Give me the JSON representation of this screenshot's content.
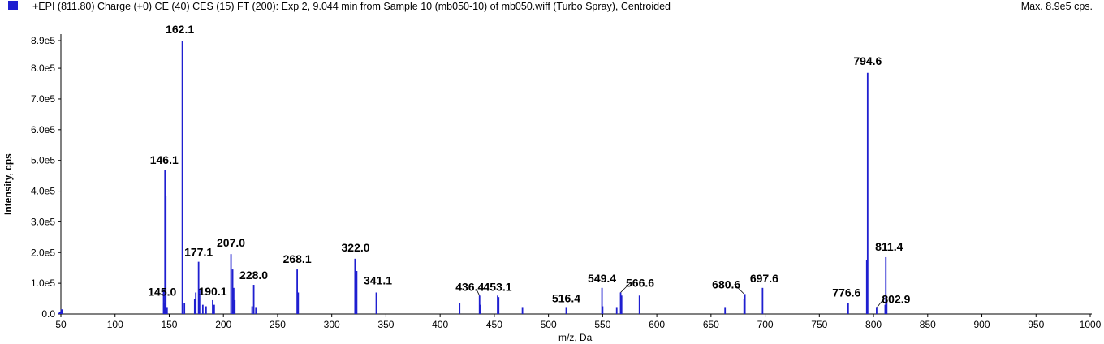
{
  "header": {
    "title": "+EPI (811.80) Charge (+0) CE (40) CES (15) FT (200): Exp 2, 9.044 min from Sample 10 (mb050-10) of mb050.wiff (Turbo Spray), Centroided",
    "max_label": "Max. 8.9e5 cps."
  },
  "colors": {
    "series": "#1f1fd0"
  },
  "chart_data": {
    "type": "bar",
    "xlabel": "m/z, Da",
    "ylabel": "Intensity, cps",
    "xlim": [
      50,
      1000
    ],
    "ylim": [
      0,
      890000
    ],
    "x_ticks": [
      50,
      100,
      150,
      200,
      250,
      300,
      350,
      400,
      450,
      500,
      550,
      600,
      650,
      700,
      750,
      800,
      850,
      900,
      950,
      1000
    ],
    "y_ticks": [
      {
        "value": 0,
        "label": "0.0"
      },
      {
        "value": 100000,
        "label": "1.0e5"
      },
      {
        "value": 200000,
        "label": "2.0e5"
      },
      {
        "value": 300000,
        "label": "3.0e5"
      },
      {
        "value": 400000,
        "label": "4.0e5"
      },
      {
        "value": 500000,
        "label": "5.0e5"
      },
      {
        "value": 600000,
        "label": "6.0e5"
      },
      {
        "value": 700000,
        "label": "7.0e5"
      },
      {
        "value": 800000,
        "label": "8.0e5"
      },
      {
        "value": 890000,
        "label": "8.9e5"
      }
    ],
    "peaks": [
      {
        "mz": 50.5,
        "intensity": 15000
      },
      {
        "mz": 144.8,
        "intensity": 80000
      },
      {
        "mz": 145.0,
        "intensity": 35000
      },
      {
        "mz": 146.1,
        "intensity": 470000
      },
      {
        "mz": 146.8,
        "intensity": 385000
      },
      {
        "mz": 148.0,
        "intensity": 20000
      },
      {
        "mz": 162.1,
        "intensity": 890000
      },
      {
        "mz": 164.0,
        "intensity": 35000
      },
      {
        "mz": 173.5,
        "intensity": 50000
      },
      {
        "mz": 174.5,
        "intensity": 70000
      },
      {
        "mz": 177.1,
        "intensity": 170000
      },
      {
        "mz": 178.0,
        "intensity": 80000
      },
      {
        "mz": 181.0,
        "intensity": 30000
      },
      {
        "mz": 184.0,
        "intensity": 25000
      },
      {
        "mz": 190.1,
        "intensity": 45000
      },
      {
        "mz": 191.5,
        "intensity": 30000
      },
      {
        "mz": 207.0,
        "intensity": 195000
      },
      {
        "mz": 208.5,
        "intensity": 145000
      },
      {
        "mz": 209.5,
        "intensity": 85000
      },
      {
        "mz": 210.5,
        "intensity": 45000
      },
      {
        "mz": 226.5,
        "intensity": 25000
      },
      {
        "mz": 228.0,
        "intensity": 95000
      },
      {
        "mz": 230.0,
        "intensity": 20000
      },
      {
        "mz": 268.1,
        "intensity": 145000
      },
      {
        "mz": 269.0,
        "intensity": 70000
      },
      {
        "mz": 321.5,
        "intensity": 180000
      },
      {
        "mz": 322.0,
        "intensity": 170000
      },
      {
        "mz": 323.0,
        "intensity": 140000
      },
      {
        "mz": 341.1,
        "intensity": 70000
      },
      {
        "mz": 418.0,
        "intensity": 35000
      },
      {
        "mz": 436.4,
        "intensity": 60000
      },
      {
        "mz": 437.0,
        "intensity": 30000
      },
      {
        "mz": 453.1,
        "intensity": 60000
      },
      {
        "mz": 454.0,
        "intensity": 55000
      },
      {
        "mz": 476.0,
        "intensity": 20000
      },
      {
        "mz": 516.4,
        "intensity": 20000
      },
      {
        "mz": 549.4,
        "intensity": 85000
      },
      {
        "mz": 550.0,
        "intensity": 25000
      },
      {
        "mz": 563.0,
        "intensity": 20000
      },
      {
        "mz": 566.6,
        "intensity": 70000
      },
      {
        "mz": 567.5,
        "intensity": 60000
      },
      {
        "mz": 584.0,
        "intensity": 60000
      },
      {
        "mz": 663.0,
        "intensity": 20000
      },
      {
        "mz": 680.6,
        "intensity": 50000
      },
      {
        "mz": 681.3,
        "intensity": 65000
      },
      {
        "mz": 697.6,
        "intensity": 85000
      },
      {
        "mz": 776.6,
        "intensity": 35000
      },
      {
        "mz": 793.8,
        "intensity": 175000
      },
      {
        "mz": 794.6,
        "intensity": 785000
      },
      {
        "mz": 802.9,
        "intensity": 20000
      },
      {
        "mz": 810.8,
        "intensity": 30000
      },
      {
        "mz": 811.4,
        "intensity": 185000
      },
      {
        "mz": 812.2,
        "intensity": 45000
      }
    ],
    "annotations": [
      {
        "text": "162.1",
        "mz": 162.1,
        "intensity": 890000
      },
      {
        "text": "146.1",
        "mz": 146.1,
        "intensity": 470000
      },
      {
        "text": "145.0",
        "mz": 145.0,
        "intensity": 35000
      },
      {
        "text": "177.1",
        "mz": 177.1,
        "intensity": 170000
      },
      {
        "text": "190.1",
        "mz": 190.1,
        "intensity": 45000
      },
      {
        "text": "207.0",
        "mz": 207.0,
        "intensity": 195000
      },
      {
        "text": "228.0",
        "mz": 228.0,
        "intensity": 95000
      },
      {
        "text": "268.1",
        "mz": 268.1,
        "intensity": 145000
      },
      {
        "text": "322.0",
        "mz": 322.0,
        "intensity": 180000
      },
      {
        "text": "341.1",
        "mz": 341.1,
        "intensity": 70000
      },
      {
        "text": "436.4",
        "mz": 436.4,
        "intensity": 60000
      },
      {
        "text": "453.1",
        "mz": 453.1,
        "intensity": 60000
      },
      {
        "text": "516.4",
        "mz": 516.4,
        "intensity": 20000
      },
      {
        "text": "549.4",
        "mz": 549.4,
        "intensity": 85000
      },
      {
        "text": "566.6",
        "mz": 566.6,
        "intensity": 70000
      },
      {
        "text": "680.6",
        "mz": 680.6,
        "intensity": 65000
      },
      {
        "text": "697.6",
        "mz": 697.6,
        "intensity": 85000
      },
      {
        "text": "776.6",
        "mz": 776.6,
        "intensity": 35000
      },
      {
        "text": "794.6",
        "mz": 794.6,
        "intensity": 785000
      },
      {
        "text": "811.4",
        "mz": 811.4,
        "intensity": 185000
      },
      {
        "text": "802.9",
        "mz": 802.9,
        "intensity": 20000
      }
    ]
  }
}
